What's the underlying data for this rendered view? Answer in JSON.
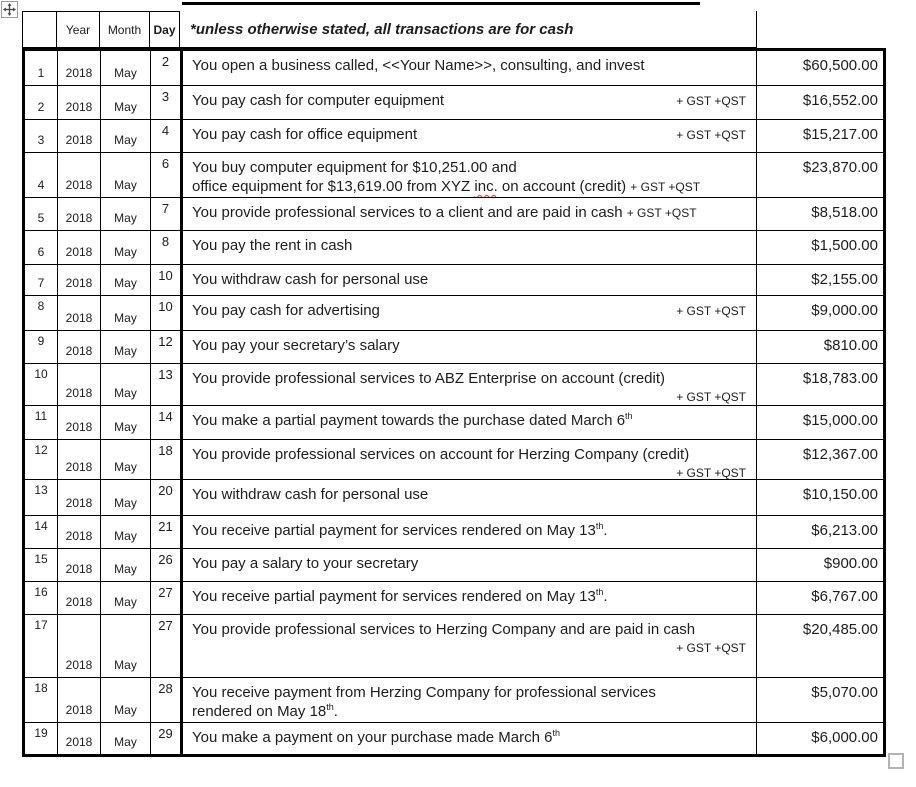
{
  "colors": {
    "border": "#000000",
    "text": "#1d1d1d",
    "misspell_underline": "#e03131",
    "handle_border": "#b3b3b3"
  },
  "header": {
    "col_blank": "",
    "col_year": "Year",
    "col_month": "Month",
    "col_day": "Day",
    "note": "*unless otherwise stated, all transactions are for cash"
  },
  "table": {
    "rows": [
      {
        "num": "1",
        "year": "2018",
        "month": "May",
        "day": "2",
        "desc": [
          {
            "text": "You open a business called, <<Your Name>>, consulting, and invest"
          }
        ],
        "tax": "",
        "tax_position": "none",
        "amount": "$60,500.00"
      },
      {
        "num": "2",
        "year": "2018",
        "month": "May",
        "day": "3",
        "desc": [
          {
            "text": "You pay cash for computer equipment"
          }
        ],
        "tax": "+ GST +QST",
        "tax_position": "inline-right",
        "amount": "$16,552.00"
      },
      {
        "num": "3",
        "year": "2018",
        "month": "May",
        "day": "4",
        "desc": [
          {
            "text": "You pay cash for office equipment"
          }
        ],
        "tax": "+ GST +QST",
        "tax_position": "inline-right",
        "amount": "$15,217.00"
      },
      {
        "num": "4",
        "year": "2018",
        "month": "May",
        "day": "6",
        "desc": [
          {
            "text": "You buy computer equipment for $10,251.00 and"
          },
          {
            "br": true
          },
          {
            "text": "office equipment for $13,619.00 from XYZ "
          },
          {
            "text": "inc.",
            "misspell": true
          },
          {
            "text": " on account (credit) "
          }
        ],
        "tax": "+ GST +QST",
        "tax_position": "inline-end",
        "amount": "$23,870.00"
      },
      {
        "num": "5",
        "year": "2018",
        "month": "May",
        "day": "7",
        "desc": [
          {
            "text": "You provide professional services to a client and are paid in cash "
          }
        ],
        "tax": "+ GST +QST",
        "tax_position": "inline-end",
        "amount": "$8,518.00"
      },
      {
        "num": "6",
        "year": "2018",
        "month": "May",
        "day": "8",
        "desc": [
          {
            "text": "You pay the rent in cash"
          }
        ],
        "tax": "",
        "tax_position": "none",
        "amount": "$1,500.00"
      },
      {
        "num": "7",
        "year": "2018",
        "month": "May",
        "day": "10",
        "desc": [
          {
            "text": "You withdraw cash for personal use"
          }
        ],
        "tax": "",
        "tax_position": "none",
        "amount": "$2,155.00"
      },
      {
        "num": "8",
        "year": "2018",
        "month": "May",
        "day": "10",
        "desc": [
          {
            "text": "You pay cash for advertising"
          }
        ],
        "tax": "+ GST +QST",
        "tax_position": "inline-right",
        "amount": "$9,000.00"
      },
      {
        "num": "9",
        "year": "2018",
        "month": "May",
        "day": "12",
        "desc": [
          {
            "text": "You pay your secretary’s salary"
          }
        ],
        "tax": "",
        "tax_position": "none",
        "amount": "$810.00"
      },
      {
        "num": "10",
        "year": "2018",
        "month": "May",
        "day": "13",
        "desc": [
          {
            "text": "You provide professional services to ABZ Enterprise on account (credit)"
          }
        ],
        "tax": "+ GST +QST",
        "tax_position": "line2-right",
        "amount": "$18,783.00"
      },
      {
        "num": "11",
        "year": "2018",
        "month": "May",
        "day": "14",
        "desc": [
          {
            "text": "You make a partial payment towards the purchase dated March 6"
          },
          {
            "text": "th",
            "sup": true
          }
        ],
        "tax": "",
        "tax_position": "none",
        "amount": "$15,000.00"
      },
      {
        "num": "12",
        "year": "2018",
        "month": "May",
        "day": "18",
        "desc": [
          {
            "text": "You provide professional services on account for Herzing Company (credit)"
          }
        ],
        "tax": "+ GST +QST",
        "tax_position": "line2-right",
        "amount": "$12,367.00"
      },
      {
        "num": "13",
        "year": "2018",
        "month": "May",
        "day": "20",
        "desc": [
          {
            "text": "You withdraw cash for personal use"
          }
        ],
        "tax": "",
        "tax_position": "none",
        "amount": "$10,150.00"
      },
      {
        "num": "14",
        "year": "2018",
        "month": "May",
        "day": "21",
        "desc": [
          {
            "text": "You receive partial payment for services rendered on May 13"
          },
          {
            "text": "th",
            "sup": true
          },
          {
            "text": "."
          }
        ],
        "tax": "",
        "tax_position": "none",
        "amount": "$6,213.00"
      },
      {
        "num": "15",
        "year": "2018",
        "month": "May",
        "day": "26",
        "desc": [
          {
            "text": "You pay a salary to your secretary"
          }
        ],
        "tax": "",
        "tax_position": "none",
        "amount": "$900.00"
      },
      {
        "num": "16",
        "year": "2018",
        "month": "May",
        "day": "27",
        "desc": [
          {
            "text": "You receive partial payment for services rendered on May 13"
          },
          {
            "text": "th",
            "sup": true
          },
          {
            "text": "."
          }
        ],
        "tax": "",
        "tax_position": "none",
        "amount": "$6,767.00"
      },
      {
        "num": "17",
        "year": "2018",
        "month": "May",
        "day": "27",
        "desc": [
          {
            "text": "You provide professional services to Herzing Company and are paid in cash"
          }
        ],
        "tax": "+ GST +QST",
        "tax_position": "line2-right",
        "amount": "$20,485.00"
      },
      {
        "num": "18",
        "year": "2018",
        "month": "May",
        "day": "28",
        "desc": [
          {
            "text": "You receive payment from Herzing Company for professional services"
          },
          {
            "br": true
          },
          {
            "text": "rendered on May 18"
          },
          {
            "text": "th",
            "sup": true
          },
          {
            "text": "."
          }
        ],
        "tax": "",
        "tax_position": "none",
        "amount": "$5,070.00"
      },
      {
        "num": "19",
        "year": "2018",
        "month": "May",
        "day": "29",
        "desc": [
          {
            "text": "You make a payment on your purchase made March 6"
          },
          {
            "text": "th",
            "sup": true
          }
        ],
        "tax": "",
        "tax_position": "none",
        "amount": "$6,000.00"
      }
    ]
  }
}
